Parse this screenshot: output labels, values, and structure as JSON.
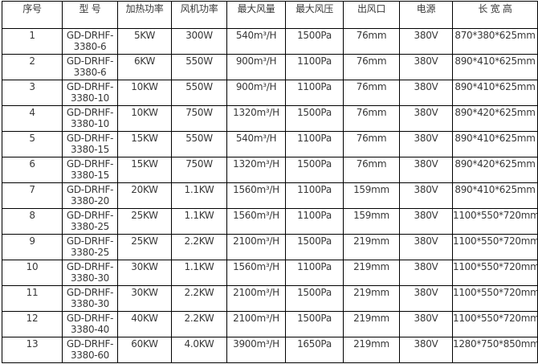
{
  "table": {
    "headers": [
      "序号",
      "型 号",
      "加热功率",
      "风机功率",
      "最大风量",
      "最大风压",
      "出风口",
      "电源",
      "长 宽 高"
    ],
    "rows": [
      [
        "1",
        "GD-DRHF-3380-6",
        "5KW",
        "300W",
        "540m³/H",
        "1500Pa",
        "76mm",
        "380V",
        "870*380*625mm"
      ],
      [
        "2",
        "GD-DRHF-3380-6",
        "6KW",
        "550W",
        "900m³/H",
        "1100Pa",
        "76mm",
        "380V",
        "890*410*625mm"
      ],
      [
        "3",
        "GD-DRHF-3380-10",
        "10KW",
        "550W",
        "900m³/H",
        "1100Pa",
        "76mm",
        "380V",
        "890*410*625mm"
      ],
      [
        "4",
        "GD-DRHF-3380-10",
        "10KW",
        "750W",
        "1320m³/H",
        "1500Pa",
        "76mm",
        "380V",
        "890*420*625mm"
      ],
      [
        "5",
        "GD-DRHF-3380-15",
        "15KW",
        "550W",
        "540m³/H",
        "1100Pa",
        "76mm",
        "380V",
        "890*410*625mm"
      ],
      [
        "6",
        "GD-DRHF-3380-15",
        "15KW",
        "750W",
        "1320m³/H",
        "1500Pa",
        "76mm",
        "380V",
        "890*420*625mm"
      ],
      [
        "7",
        "GD-DRHF-3380-20",
        "20KW",
        "1.1KW",
        "1560m³/H",
        "1100Pa",
        "159mm",
        "380V",
        "890*410*625mm"
      ],
      [
        "8",
        "GD-DRHF-3380-25",
        "25KW",
        "1.1KW",
        "1560m³/H",
        "1100Pa",
        "159mm",
        "380V",
        "1100*550*720mm"
      ],
      [
        "9",
        "GD-DRHF-3380-25",
        "25KW",
        "2.2KW",
        "2100m³/H",
        "1500Pa",
        "219mm",
        "380V",
        "1100*550*720mm"
      ],
      [
        "10",
        "GD-DRHF-3380-30",
        "30KW",
        "1.1KW",
        "1560m³/H",
        "1100Pa",
        "219mm",
        "380V",
        "1100*550*720mm"
      ],
      [
        "11",
        "GD-DRHF-3380-30",
        "30KW",
        "2.2KW",
        "2100m³/H",
        "1500Pa",
        "219mm",
        "380V",
        "1100*550*720mm"
      ],
      [
        "12",
        "GD-DRHF-3380-40",
        "40KW",
        "2.2KW",
        "2100m³/H",
        "1500Pa",
        "219mm",
        "380V",
        "1100*550*720mm"
      ],
      [
        "13",
        "GD-DRHF-3380-60",
        "60KW",
        "4.0KW",
        "3900m³/H",
        "1650Pa",
        "219mm",
        "380V",
        "1280*750*850mm"
      ]
    ]
  }
}
